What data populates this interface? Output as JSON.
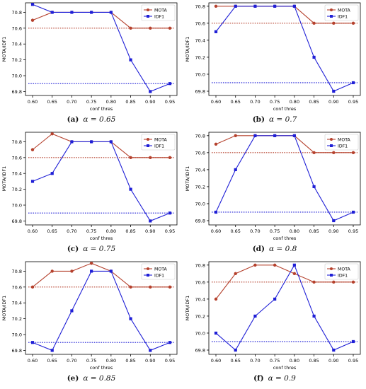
{
  "colors": {
    "mota": "#b5412d",
    "idf1": "#1f1fd6"
  },
  "chart_data": [
    {
      "type": "line",
      "caption_label": "(a)",
      "caption_alpha": "α = 0.65",
      "xlabel": "conf thres",
      "ylabel": "MOTA/IDF1",
      "x": [
        "0.60",
        "0.65",
        "0.70",
        "0.75",
        "0.80",
        "0.85",
        "0.90",
        "0.95"
      ],
      "yticks": [
        "69.8",
        "70.0",
        "70.2",
        "70.4",
        "70.6",
        "70.8"
      ],
      "ylim": [
        69.75,
        70.92
      ],
      "grid": false,
      "legend": "top-right",
      "series": [
        {
          "name": "MOTA",
          "values": [
            70.7,
            70.8,
            70.8,
            70.8,
            70.8,
            70.6,
            70.6,
            70.6
          ],
          "baseline": 70.6
        },
        {
          "name": "IDF1",
          "values": [
            70.9,
            70.8,
            70.8,
            70.8,
            70.8,
            70.2,
            69.8,
            69.9
          ],
          "baseline": 69.9
        }
      ]
    },
    {
      "type": "line",
      "caption_label": "(b)",
      "caption_alpha": "α = 0.7",
      "xlabel": "conf thres",
      "ylabel": "MOTA/IDF1",
      "x": [
        "0.60",
        "0.65",
        "0.70",
        "0.75",
        "0.80",
        "0.85",
        "0.90",
        "0.95"
      ],
      "yticks": [
        "69.8",
        "70.0",
        "70.2",
        "70.4",
        "70.6",
        "70.8"
      ],
      "ylim": [
        69.75,
        70.84
      ],
      "grid": false,
      "legend": "top-right",
      "series": [
        {
          "name": "MOTA",
          "values": [
            70.8,
            70.8,
            70.8,
            70.8,
            70.8,
            70.6,
            70.6,
            70.6
          ],
          "baseline": 70.6
        },
        {
          "name": "IDF1",
          "values": [
            70.5,
            70.8,
            70.8,
            70.8,
            70.8,
            70.2,
            69.8,
            69.9
          ],
          "baseline": 69.9
        }
      ]
    },
    {
      "type": "line",
      "caption_label": "(c)",
      "caption_alpha": "α = 0.75",
      "xlabel": "conf thres",
      "ylabel": "MOTA/IDF1",
      "x": [
        "0.60",
        "0.65",
        "0.70",
        "0.75",
        "0.80",
        "0.85",
        "0.90",
        "0.95"
      ],
      "yticks": [
        "69.8",
        "70.0",
        "70.2",
        "70.4",
        "70.6",
        "70.8"
      ],
      "ylim": [
        69.75,
        70.92
      ],
      "grid": false,
      "legend": "top-right",
      "series": [
        {
          "name": "MOTA",
          "values": [
            70.7,
            70.9,
            70.8,
            70.8,
            70.8,
            70.6,
            70.6,
            70.6
          ],
          "baseline": 70.6
        },
        {
          "name": "IDF1",
          "values": [
            70.3,
            70.4,
            70.8,
            70.8,
            70.8,
            70.2,
            69.8,
            69.9
          ],
          "baseline": 69.9
        }
      ]
    },
    {
      "type": "line",
      "caption_label": "(d)",
      "caption_alpha": "α = 0.8",
      "xlabel": "conf thres",
      "ylabel": "MOTA/IDF1",
      "x": [
        "0.60",
        "0.65",
        "0.70",
        "0.75",
        "0.80",
        "0.85",
        "0.90",
        "0.95"
      ],
      "yticks": [
        "69.8",
        "70.0",
        "70.2",
        "70.4",
        "70.6",
        "70.8"
      ],
      "ylim": [
        69.75,
        70.84
      ],
      "grid": false,
      "legend": "top-right",
      "series": [
        {
          "name": "MOTA",
          "values": [
            70.7,
            70.8,
            70.8,
            70.8,
            70.8,
            70.6,
            70.6,
            70.6
          ],
          "baseline": 70.6
        },
        {
          "name": "IDF1",
          "values": [
            69.9,
            70.4,
            70.8,
            70.8,
            70.8,
            70.2,
            69.8,
            69.9
          ],
          "baseline": 69.9
        }
      ]
    },
    {
      "type": "line",
      "caption_label": "(e)",
      "caption_alpha": "α = 0.85",
      "xlabel": "conf thres",
      "ylabel": "MOTA/IDF1",
      "x": [
        "0.60",
        "0.65",
        "0.70",
        "0.75",
        "0.80",
        "0.85",
        "0.90",
        "0.95"
      ],
      "yticks": [
        "69.8",
        "70.0",
        "70.2",
        "70.4",
        "70.6",
        "70.8"
      ],
      "ylim": [
        69.75,
        70.92
      ],
      "grid": false,
      "legend": "top-right",
      "series": [
        {
          "name": "MOTA",
          "values": [
            70.6,
            70.8,
            70.8,
            70.9,
            70.8,
            70.6,
            70.6,
            70.6
          ],
          "baseline": 70.6
        },
        {
          "name": "IDF1",
          "values": [
            69.9,
            69.8,
            70.3,
            70.8,
            70.8,
            70.2,
            69.8,
            69.9
          ],
          "baseline": 69.9
        }
      ]
    },
    {
      "type": "line",
      "caption_label": "(f)",
      "caption_alpha": "α = 0.9",
      "xlabel": "conf thres",
      "ylabel": "MOTA/IDF1",
      "x": [
        "0.60",
        "0.65",
        "0.70",
        "0.75",
        "0.80",
        "0.85",
        "0.90",
        "0.95"
      ],
      "yticks": [
        "69.8",
        "70.0",
        "70.2",
        "70.4",
        "70.6",
        "70.8"
      ],
      "ylim": [
        69.75,
        70.84
      ],
      "grid": false,
      "legend": "top-right",
      "series": [
        {
          "name": "MOTA",
          "values": [
            70.4,
            70.7,
            70.8,
            70.8,
            70.7,
            70.6,
            70.6,
            70.6
          ],
          "baseline": 70.6
        },
        {
          "name": "IDF1",
          "values": [
            70.0,
            69.8,
            70.2,
            70.4,
            70.8,
            70.2,
            69.8,
            69.9
          ],
          "baseline": 69.9
        }
      ]
    }
  ]
}
